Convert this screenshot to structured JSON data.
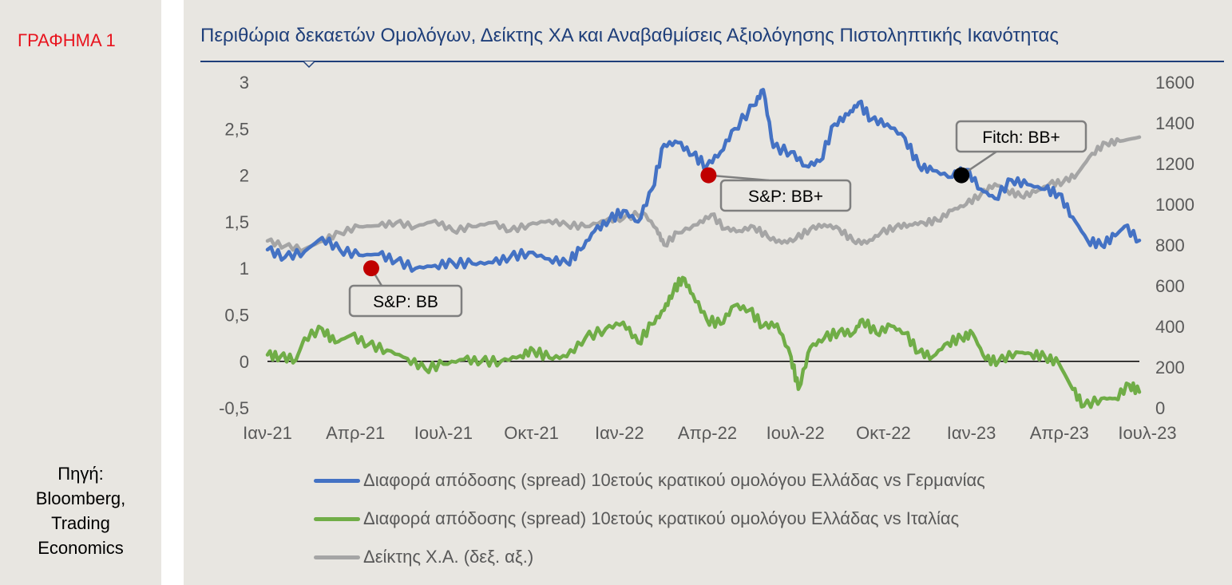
{
  "figure_label": "ΓΡΑΦΗΜΑ 1",
  "source": {
    "lines": [
      "Πηγή:",
      "Bloomberg,",
      "Trading",
      "Economics"
    ]
  },
  "colors": {
    "spread_germany": "#4472c4",
    "spread_italy": "#70ad47",
    "stock_index": "#a5a5a5",
    "rating_red": "#c00000",
    "rating_black": "#000000",
    "figure_label": "#e8141e",
    "title": "#1f3f7a"
  },
  "chart_data": {
    "type": "line",
    "title": "Περιθώρια δεκαετών Ομολόγων, Δείκτης ΧΑ και Αναβαθμίσεις Αξιολόγησης Πιστοληπτικής Ικανότητας",
    "x_ticks": [
      "Ιαν-21",
      "Απρ-21",
      "Ιουλ-21",
      "Οκτ-21",
      "Ιαν-22",
      "Απρ-22",
      "Ιουλ-22",
      "Οκτ-22",
      "Ιαν-23",
      "Απρ-23",
      "Ιουλ-23"
    ],
    "y_left": {
      "ticks": [
        "3",
        "2,5",
        "2",
        "1,5",
        "1",
        "0,5",
        "0",
        "-0,5"
      ],
      "lim": [
        -0.5,
        3
      ]
    },
    "y_right": {
      "ticks": [
        "1600",
        "1400",
        "1200",
        "1000",
        "800",
        "600",
        "400",
        "200",
        "0"
      ],
      "lim": [
        0,
        1600
      ]
    },
    "x_range": [
      "2021-01",
      "2023-07"
    ],
    "series": [
      {
        "name": "Διαφορά απόδοσης (spread) 10ετούς κρατικού ομολόγου Ελλάδας vs Γερμανίας",
        "axis": "left",
        "points": [
          [
            "2021-01-01",
            1.2
          ],
          [
            "2021-01-20",
            1.12
          ],
          [
            "2021-02-10",
            1.18
          ],
          [
            "2021-03-01",
            1.33
          ],
          [
            "2021-03-20",
            1.2
          ],
          [
            "2021-04-10",
            1.14
          ],
          [
            "2021-05-01",
            1.15
          ],
          [
            "2021-05-20",
            1.08
          ],
          [
            "2021-06-10",
            1.0
          ],
          [
            "2021-07-01",
            1.03
          ],
          [
            "2021-07-20",
            1.06
          ],
          [
            "2021-08-10",
            1.05
          ],
          [
            "2021-09-01",
            1.06
          ],
          [
            "2021-09-20",
            1.12
          ],
          [
            "2021-10-10",
            1.17
          ],
          [
            "2021-11-01",
            1.1
          ],
          [
            "2021-11-20",
            1.06
          ],
          [
            "2021-12-05",
            1.2
          ],
          [
            "2021-12-20",
            1.4
          ],
          [
            "2022-01-05",
            1.52
          ],
          [
            "2022-01-20",
            1.62
          ],
          [
            "2022-02-05",
            1.5
          ],
          [
            "2022-02-20",
            1.85
          ],
          [
            "2022-03-05",
            2.33
          ],
          [
            "2022-03-20",
            2.35
          ],
          [
            "2022-04-05",
            2.22
          ],
          [
            "2022-04-20",
            2.1
          ],
          [
            "2022-05-05",
            2.25
          ],
          [
            "2022-05-20",
            2.5
          ],
          [
            "2022-06-10",
            2.75
          ],
          [
            "2022-06-20",
            2.92
          ],
          [
            "2022-07-01",
            2.3
          ],
          [
            "2022-07-20",
            2.25
          ],
          [
            "2022-08-05",
            2.1
          ],
          [
            "2022-08-20",
            2.15
          ],
          [
            "2022-09-05",
            2.55
          ],
          [
            "2022-09-20",
            2.65
          ],
          [
            "2022-10-01",
            2.78
          ],
          [
            "2022-10-15",
            2.6
          ],
          [
            "2022-11-01",
            2.55
          ],
          [
            "2022-11-20",
            2.4
          ],
          [
            "2022-12-05",
            2.1
          ],
          [
            "2022-12-20",
            2.05
          ],
          [
            "2023-01-10",
            1.98
          ],
          [
            "2023-01-25",
            2.06
          ],
          [
            "2023-02-10",
            1.85
          ],
          [
            "2023-02-25",
            1.75
          ],
          [
            "2023-03-15",
            1.95
          ],
          [
            "2023-04-01",
            1.9
          ],
          [
            "2023-04-20",
            1.85
          ],
          [
            "2023-05-05",
            1.8
          ],
          [
            "2023-05-20",
            1.55
          ],
          [
            "2023-06-05",
            1.3
          ],
          [
            "2023-06-20",
            1.25
          ],
          [
            "2023-07-05",
            1.35
          ],
          [
            "2023-07-15",
            1.45
          ],
          [
            "2023-07-31",
            1.3
          ]
        ]
      },
      {
        "name": "Διαφορά απόδοσης (spread) 10ετούς κρατικού ομολόγου Ελλάδας vs Ιταλίας",
        "axis": "left",
        "points": [
          [
            "2021-01-01",
            0.07
          ],
          [
            "2021-01-15",
            0.05
          ],
          [
            "2021-02-01",
            0.02
          ],
          [
            "2021-02-10",
            0.25
          ],
          [
            "2021-03-01",
            0.35
          ],
          [
            "2021-03-15",
            0.2
          ],
          [
            "2021-04-01",
            0.28
          ],
          [
            "2021-04-20",
            0.18
          ],
          [
            "2021-05-10",
            0.12
          ],
          [
            "2021-06-01",
            0.03
          ],
          [
            "2021-06-20",
            -0.08
          ],
          [
            "2021-07-10",
            -0.03
          ],
          [
            "2021-08-01",
            0.02
          ],
          [
            "2021-08-20",
            0.0
          ],
          [
            "2021-09-10",
            0.0
          ],
          [
            "2021-10-01",
            0.06
          ],
          [
            "2021-10-15",
            0.12
          ],
          [
            "2021-11-01",
            0.04
          ],
          [
            "2021-11-20",
            0.05
          ],
          [
            "2021-12-10",
            0.25
          ],
          [
            "2022-01-01",
            0.35
          ],
          [
            "2022-01-20",
            0.42
          ],
          [
            "2022-02-05",
            0.2
          ],
          [
            "2022-02-20",
            0.4
          ],
          [
            "2022-03-05",
            0.55
          ],
          [
            "2022-03-15",
            0.75
          ],
          [
            "2022-03-25",
            0.9
          ],
          [
            "2022-04-05",
            0.72
          ],
          [
            "2022-04-20",
            0.45
          ],
          [
            "2022-05-05",
            0.4
          ],
          [
            "2022-05-20",
            0.6
          ],
          [
            "2022-06-05",
            0.55
          ],
          [
            "2022-06-20",
            0.38
          ],
          [
            "2022-07-05",
            0.4
          ],
          [
            "2022-07-20",
            0.05
          ],
          [
            "2022-07-28",
            -0.3
          ],
          [
            "2022-08-10",
            0.15
          ],
          [
            "2022-08-25",
            0.25
          ],
          [
            "2022-09-10",
            0.32
          ],
          [
            "2022-09-25",
            0.3
          ],
          [
            "2022-10-05",
            0.45
          ],
          [
            "2022-10-20",
            0.3
          ],
          [
            "2022-11-05",
            0.38
          ],
          [
            "2022-11-20",
            0.3
          ],
          [
            "2022-12-05",
            0.1
          ],
          [
            "2022-12-20",
            0.05
          ],
          [
            "2023-01-05",
            0.2
          ],
          [
            "2023-01-20",
            0.25
          ],
          [
            "2023-02-01",
            0.3
          ],
          [
            "2023-02-15",
            0.02
          ],
          [
            "2023-03-01",
            0.0
          ],
          [
            "2023-03-20",
            0.1
          ],
          [
            "2023-04-05",
            0.08
          ],
          [
            "2023-04-20",
            0.05
          ],
          [
            "2023-05-05",
            -0.02
          ],
          [
            "2023-05-20",
            -0.3
          ],
          [
            "2023-06-01",
            -0.48
          ],
          [
            "2023-06-20",
            -0.4
          ],
          [
            "2023-07-05",
            -0.4
          ],
          [
            "2023-07-20",
            -0.25
          ],
          [
            "2023-07-31",
            -0.33
          ]
        ]
      },
      {
        "name": "Δείκτης Χ.Α. (δεξ. αξ.)",
        "axis": "right",
        "points": [
          [
            "2021-01-01",
            820
          ],
          [
            "2021-01-20",
            795
          ],
          [
            "2021-02-10",
            780
          ],
          [
            "2021-03-01",
            820
          ],
          [
            "2021-03-20",
            860
          ],
          [
            "2021-04-10",
            890
          ],
          [
            "2021-05-01",
            895
          ],
          [
            "2021-05-20",
            910
          ],
          [
            "2021-06-10",
            890
          ],
          [
            "2021-07-01",
            920
          ],
          [
            "2021-07-20",
            870
          ],
          [
            "2021-08-10",
            890
          ],
          [
            "2021-09-01",
            910
          ],
          [
            "2021-09-20",
            870
          ],
          [
            "2021-10-10",
            900
          ],
          [
            "2021-11-01",
            920
          ],
          [
            "2021-11-20",
            900
          ],
          [
            "2021-12-10",
            890
          ],
          [
            "2022-01-01",
            920
          ],
          [
            "2022-01-20",
            930
          ],
          [
            "2022-02-10",
            960
          ],
          [
            "2022-02-25",
            880
          ],
          [
            "2022-03-05",
            800
          ],
          [
            "2022-03-20",
            860
          ],
          [
            "2022-04-10",
            900
          ],
          [
            "2022-04-25",
            950
          ],
          [
            "2022-05-10",
            880
          ],
          [
            "2022-05-25",
            870
          ],
          [
            "2022-06-10",
            890
          ],
          [
            "2022-06-25",
            840
          ],
          [
            "2022-07-10",
            810
          ],
          [
            "2022-07-25",
            830
          ],
          [
            "2022-08-10",
            880
          ],
          [
            "2022-08-25",
            900
          ],
          [
            "2022-09-10",
            880
          ],
          [
            "2022-09-25",
            820
          ],
          [
            "2022-10-10",
            810
          ],
          [
            "2022-10-25",
            860
          ],
          [
            "2022-11-10",
            890
          ],
          [
            "2022-11-25",
            900
          ],
          [
            "2022-12-10",
            910
          ],
          [
            "2022-12-25",
            920
          ],
          [
            "2023-01-10",
            970
          ],
          [
            "2023-01-25",
            1000
          ],
          [
            "2023-02-10",
            1050
          ],
          [
            "2023-02-25",
            1100
          ],
          [
            "2023-03-10",
            1070
          ],
          [
            "2023-03-25",
            1040
          ],
          [
            "2023-04-10",
            1060
          ],
          [
            "2023-04-25",
            1100
          ],
          [
            "2023-05-10",
            1110
          ],
          [
            "2023-05-25",
            1150
          ],
          [
            "2023-06-10",
            1250
          ],
          [
            "2023-06-25",
            1300
          ],
          [
            "2023-07-10",
            1310
          ],
          [
            "2023-07-31",
            1330
          ]
        ]
      }
    ],
    "annotations": [
      {
        "text": "S&P: BB",
        "date": "2021-04-23",
        "value": 1.0,
        "marker": "red"
      },
      {
        "text": "S&P: BB+",
        "date": "2022-04-22",
        "value": 2.0,
        "marker": "red"
      },
      {
        "text": "Fitch: BB+",
        "date": "2023-01-20",
        "value": 2.0,
        "marker": "black"
      }
    ],
    "zero_line": true,
    "legend_position": "bottom"
  }
}
